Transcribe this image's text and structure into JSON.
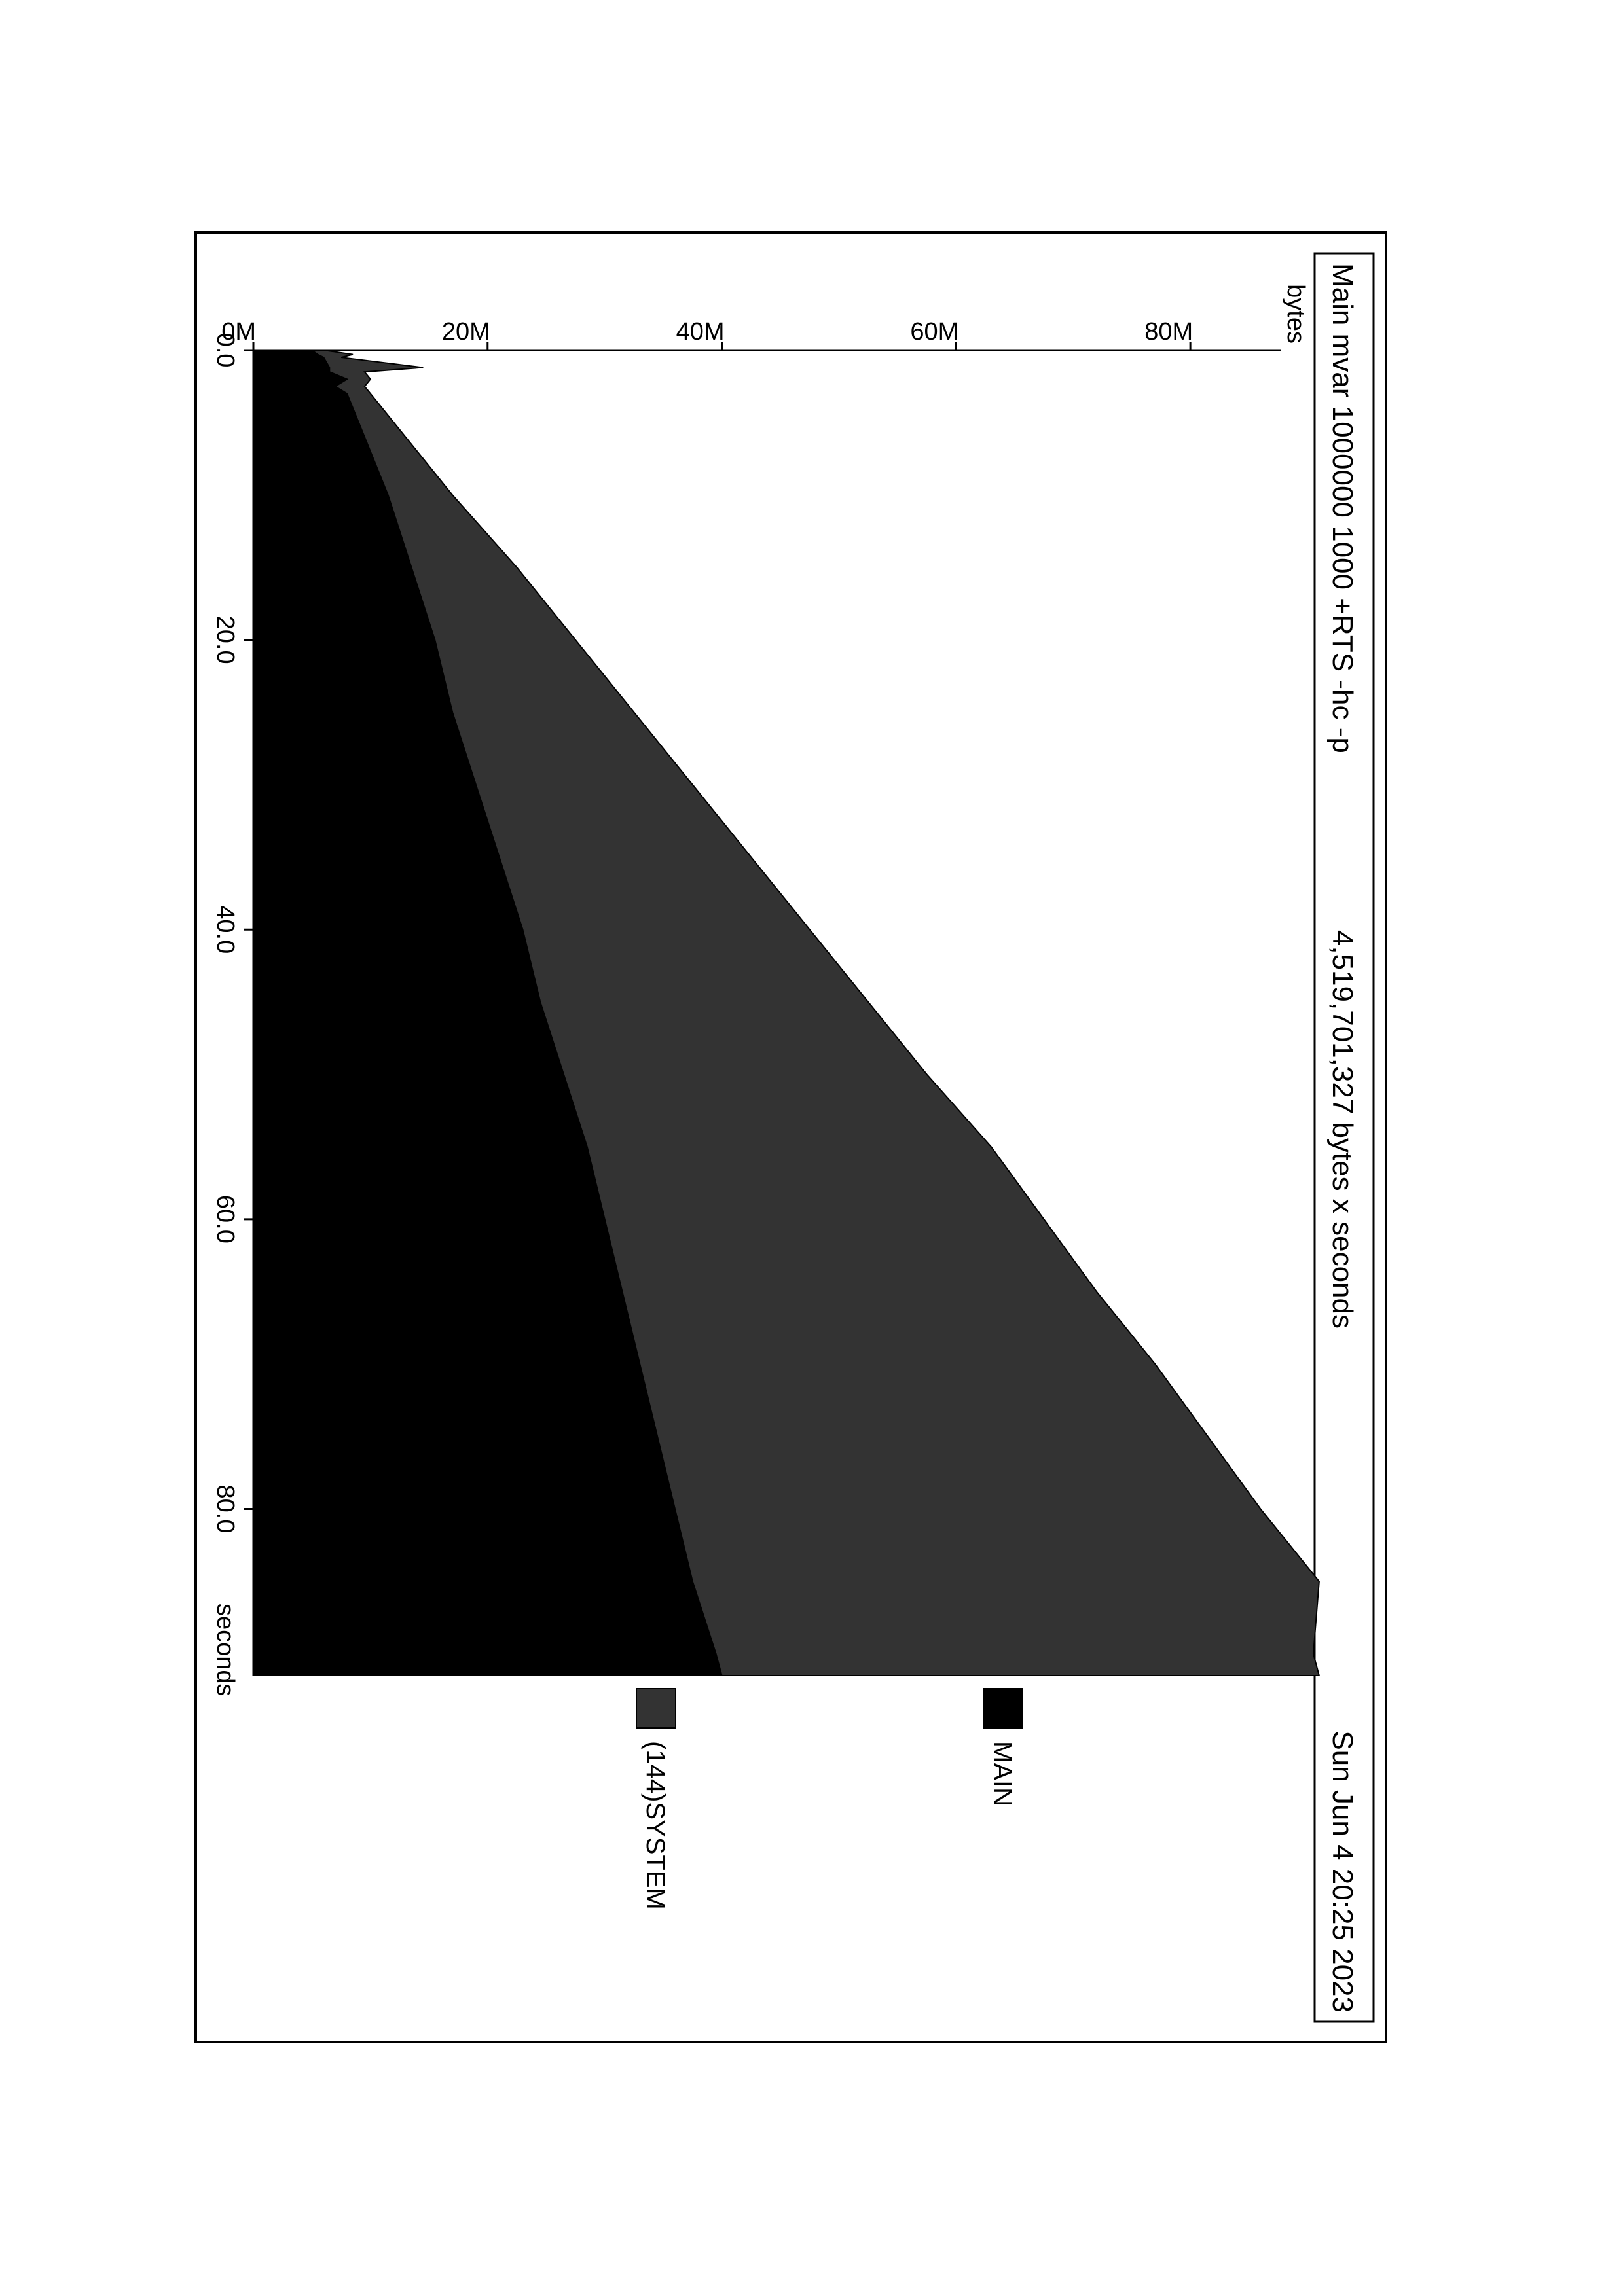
{
  "header": {
    "title": "Main mvar 1000000 1000 +RTS -hc -p",
    "total": "4,519,701,327 bytes x seconds",
    "date": "Sun Jun  4 20:25 2023"
  },
  "chart_data": {
    "type": "area",
    "stacked": true,
    "rotated": "page rotated 90 degrees clockwise (landscape printed on portrait page)",
    "xlabel": "seconds",
    "ylabel": "bytes",
    "xlim": [
      0,
      91.5
    ],
    "ylim": [
      0,
      90000000
    ],
    "x_ticks": [
      0,
      20,
      40,
      60,
      80
    ],
    "x_tick_labels": [
      "0.0",
      "20.0",
      "40.0",
      "60.0",
      "80.0"
    ],
    "y_ticks": [
      0,
      20000000,
      40000000,
      60000000,
      80000000
    ],
    "y_tick_labels": [
      "0M",
      "20M",
      "40M",
      "60M",
      "80M"
    ],
    "x": [
      0,
      0.3,
      0.5,
      1.2,
      1.5,
      2.0,
      2.5,
      3,
      5,
      10,
      15,
      20,
      25,
      30,
      35,
      40,
      45,
      50,
      55,
      60,
      65,
      70,
      75,
      80,
      85,
      90,
      91.5
    ],
    "series": [
      {
        "name": "MAIN",
        "color": "#000000",
        "values": [
          5000000,
          5500000,
          6000000,
          6500000,
          6500000,
          8000000,
          7000000,
          8000000,
          9000000,
          11500000,
          13500000,
          15500000,
          17000000,
          19000000,
          21000000,
          23000000,
          24500000,
          26500000,
          28500000,
          30000000,
          31500000,
          33000000,
          34500000,
          36000000,
          37500000,
          39500000,
          40000000
        ]
      },
      {
        "name": "(144)SYSTEM",
        "color": "#333333",
        "values": [
          1000000,
          3000000,
          1500000,
          8000000,
          3000000,
          2000000,
          2500000,
          2000000,
          3000000,
          5500000,
          9000000,
          12000000,
          15500000,
          18500000,
          21500000,
          24500000,
          28000000,
          31000000,
          34500000,
          37500000,
          40500000,
          44000000,
          47000000,
          50000000,
          53500000,
          51000000,
          51000000
        ]
      }
    ],
    "legend": "right of plot, stacked top-to-bottom",
    "grid": false
  }
}
